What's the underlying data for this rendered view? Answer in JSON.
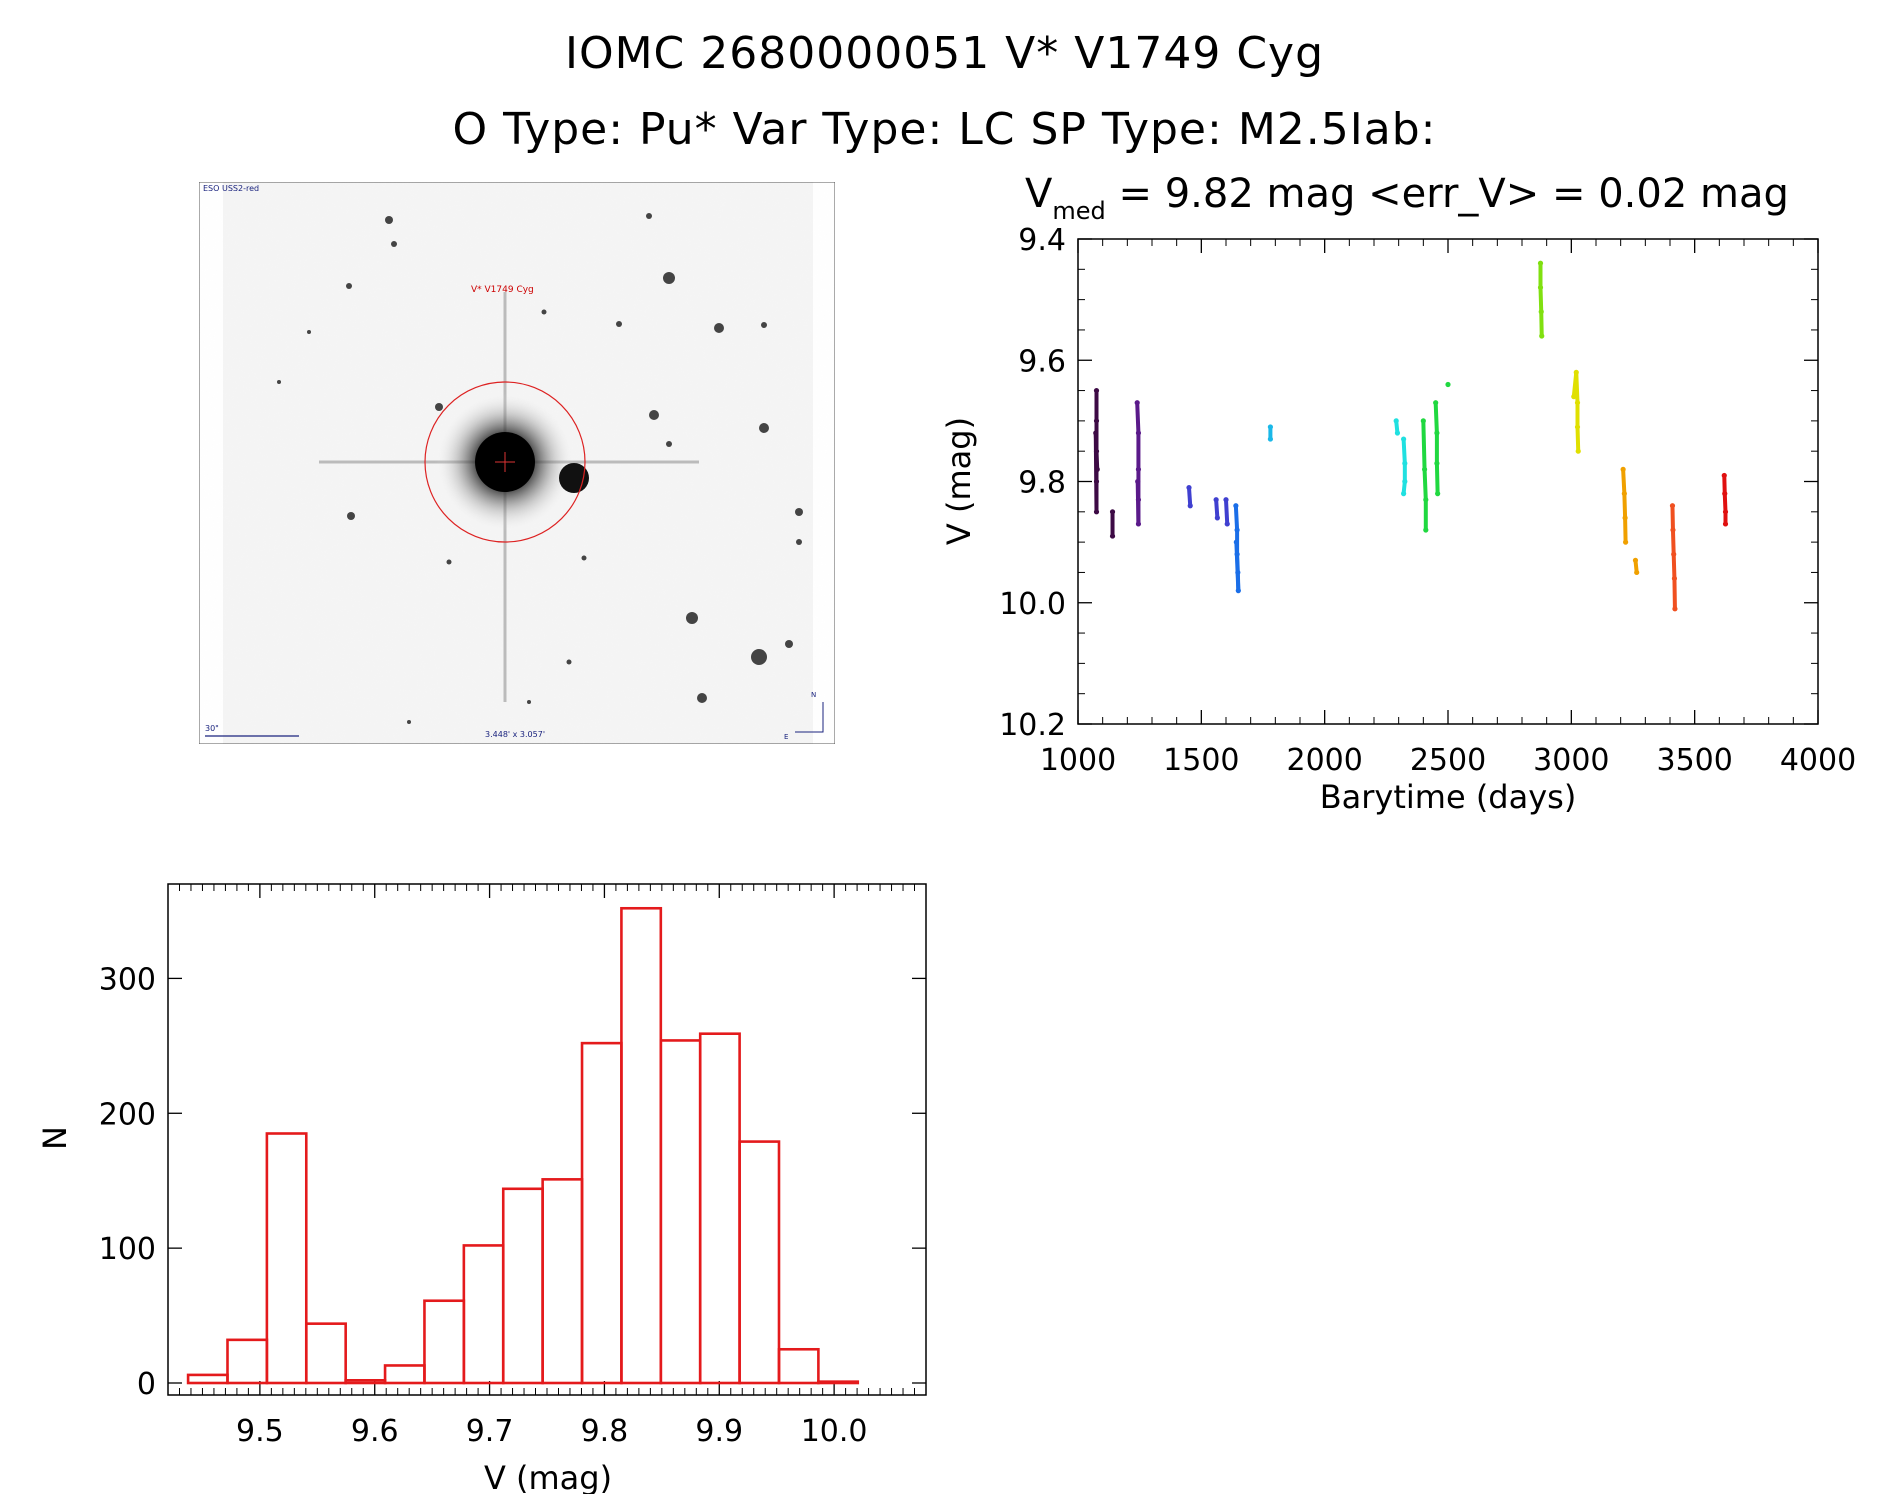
{
  "titles": {
    "line1": "IOMC 2680000051    V* V1749 Cyg",
    "line2": "O Type: Pu*  Var Type: LC  SP Type: M2.5Iab:"
  },
  "image": {
    "survey_label": "ESO USS2-red",
    "target_label": "V* V1749 Cyg",
    "scale_label": "30\"",
    "size_label": "3.448' x 3.057'",
    "north": "N",
    "east": "E"
  },
  "lightcurve": {
    "median_label_prefix": "V",
    "median_label_sub": "med",
    "median_label_rest": " = 9.82 mag <err_V> = 0.02 mag",
    "xlabel": "Barytime (days)",
    "ylabel": "V (mag)",
    "xlim": [
      1000,
      4000
    ],
    "ylim": [
      9.4,
      10.2
    ],
    "y_inverted": true,
    "xticks": [
      1000,
      1500,
      2000,
      2500,
      3000,
      3500,
      4000
    ],
    "yticks": [
      "9.4",
      "9.6",
      "9.8",
      "10.0",
      "10.2"
    ]
  },
  "chart_data": [
    {
      "type": "scatter",
      "xlabel": "Barytime (days)",
      "ylabel": "V (mag)",
      "xlim": [
        1000,
        4000
      ],
      "ylim": [
        10.2,
        9.4
      ],
      "series": [
        {
          "color": "#3d0a45",
          "points": [
            [
              1075,
              9.65
            ],
            [
              1075,
              9.7
            ],
            [
              1075,
              9.75
            ],
            [
              1075,
              9.8
            ],
            [
              1075,
              9.85
            ],
            [
              1072,
              9.72
            ],
            [
              1078,
              9.78
            ],
            [
              1140,
              9.85
            ],
            [
              1140,
              9.89
            ]
          ]
        },
        {
          "color": "#5a1a8a",
          "points": [
            [
              1240,
              9.67
            ],
            [
              1245,
              9.72
            ],
            [
              1245,
              9.78
            ],
            [
              1245,
              9.83
            ],
            [
              1245,
              9.87
            ],
            [
              1242,
              9.8
            ]
          ]
        },
        {
          "color": "#4040d0",
          "points": [
            [
              1450,
              9.81
            ],
            [
              1455,
              9.84
            ],
            [
              1560,
              9.83
            ],
            [
              1565,
              9.86
            ],
            [
              1600,
              9.83
            ],
            [
              1605,
              9.87
            ]
          ]
        },
        {
          "color": "#1a6ee8",
          "points": [
            [
              1640,
              9.84
            ],
            [
              1645,
              9.88
            ],
            [
              1645,
              9.92
            ],
            [
              1648,
              9.95
            ],
            [
              1650,
              9.98
            ],
            [
              1642,
              9.9
            ]
          ]
        },
        {
          "color": "#1ab8e8",
          "points": [
            [
              1780,
              9.71
            ],
            [
              1780,
              9.73
            ]
          ]
        },
        {
          "color": "#20e0e0",
          "points": [
            [
              2290,
              9.7
            ],
            [
              2295,
              9.72
            ],
            [
              2320,
              9.73
            ],
            [
              2325,
              9.77
            ],
            [
              2325,
              9.8
            ],
            [
              2320,
              9.82
            ]
          ]
        },
        {
          "color": "#20d840",
          "points": [
            [
              2400,
              9.7
            ],
            [
              2405,
              9.78
            ],
            [
              2410,
              9.83
            ],
            [
              2410,
              9.88
            ],
            [
              2450,
              9.67
            ],
            [
              2455,
              9.72
            ],
            [
              2455,
              9.77
            ],
            [
              2458,
              9.82
            ],
            [
              2500,
              9.64
            ]
          ]
        },
        {
          "color": "#80e010",
          "points": [
            [
              2875,
              9.44
            ],
            [
              2875,
              9.48
            ],
            [
              2878,
              9.52
            ],
            [
              2880,
              9.56
            ]
          ]
        },
        {
          "color": "#e0e000",
          "points": [
            [
              3010,
              9.66
            ],
            [
              3020,
              9.62
            ],
            [
              3025,
              9.67
            ],
            [
              3025,
              9.71
            ],
            [
              3028,
              9.75
            ]
          ]
        },
        {
          "color": "#f0a000",
          "points": [
            [
              3210,
              9.78
            ],
            [
              3215,
              9.82
            ],
            [
              3218,
              9.86
            ],
            [
              3220,
              9.9
            ],
            [
              3260,
              9.93
            ],
            [
              3265,
              9.95
            ]
          ]
        },
        {
          "color": "#f05020",
          "points": [
            [
              3410,
              9.84
            ],
            [
              3412,
              9.88
            ],
            [
              3415,
              9.92
            ],
            [
              3418,
              9.96
            ],
            [
              3420,
              10.01
            ]
          ]
        },
        {
          "color": "#e01010",
          "points": [
            [
              3620,
              9.79
            ],
            [
              3622,
              9.82
            ],
            [
              3625,
              9.85
            ],
            [
              3625,
              9.87
            ]
          ]
        }
      ]
    },
    {
      "type": "bar",
      "xlabel": "V (mag)",
      "ylabel": "N",
      "xlim": [
        9.42,
        10.08
      ],
      "ylim": [
        0,
        370
      ],
      "bin_width": 0.0343,
      "bin_starts": [
        9.4375,
        9.4718,
        9.5061,
        9.5404,
        9.5747,
        9.609,
        9.6433,
        9.6776,
        9.7119,
        9.7462,
        9.7805,
        9.8148,
        9.8491,
        9.8834,
        9.9177,
        9.952,
        9.9863
      ],
      "values": [
        6,
        32,
        185,
        44,
        2,
        13,
        61,
        102,
        144,
        151,
        252,
        352,
        254,
        259,
        179,
        25,
        1
      ],
      "xticks": [
        "9.5",
        "9.6",
        "9.7",
        "9.8",
        "9.9",
        "10.0"
      ],
      "yticks": [
        "0",
        "100",
        "200",
        "300"
      ]
    }
  ]
}
